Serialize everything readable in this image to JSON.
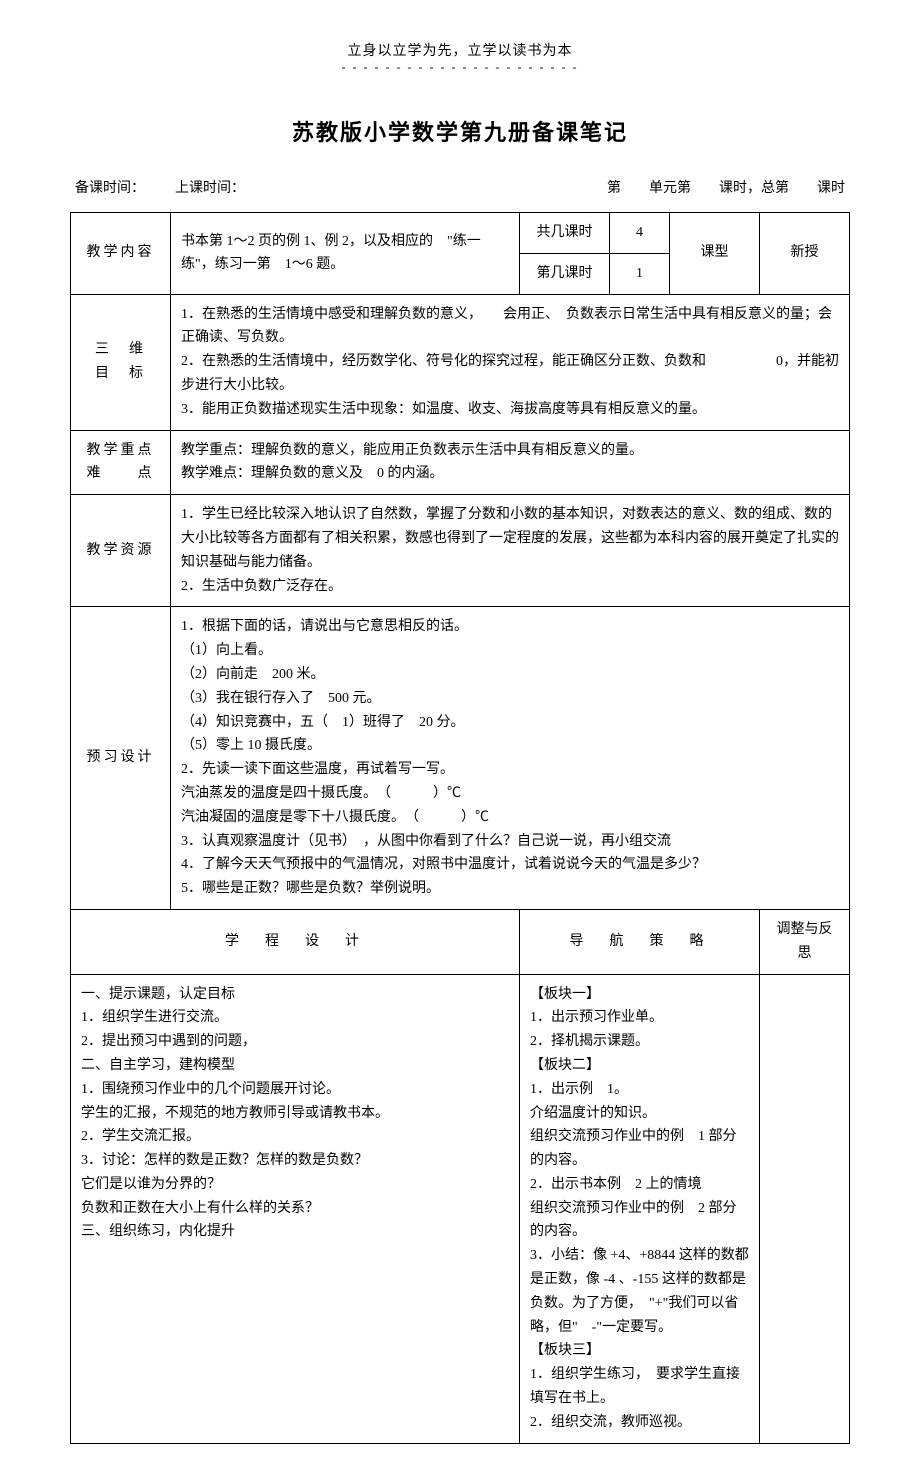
{
  "motto": {
    "text": "立身以立学为先，立学以读书为本",
    "dashes": "- - - - - - - - - - - - - - - - - - - - - -"
  },
  "title": "苏教版小学数学第九册备课笔记",
  "timing": {
    "prep_time_label": "备课时间：",
    "class_time_label": "上课时间：",
    "unit_label": "第　　单元第　　课时，总第　　课时"
  },
  "content": {
    "label": "教学内容",
    "text": "书本第 1～2 页的例 1、例 2，以及相应的　\"练一练\"，练习一第　1～6 题。",
    "total_sessions_label": "共几课时",
    "total_sessions_value": "4",
    "session_num_label": "第几课时",
    "session_num_value": "1",
    "class_type_label": "课型",
    "class_type_value": "新授"
  },
  "objectives": {
    "label1": "三　维",
    "label2": "目　标",
    "text": "1．在熟悉的生活情境中感受和理解负数的意义，　　会用正、　负数表示日常生活中具有相反意义的量；会正确读、写负数。\n2．在熟悉的生活情境中，经历数学化、符号化的探究过程，能正确区分正数、负数和　　　　　0，并能初步进行大小比较。\n3．能用正负数描述现实生活中现象：如温度、收支、海拔高度等具有相反意义的量。"
  },
  "key_points": {
    "label1": "教学重点",
    "label2": "难　　点",
    "text": "教学重点：理解负数的意义，能应用正负数表示生活中具有相反意义的量。\n教学难点：理解负数的意义及　0 的内涵。"
  },
  "resources": {
    "label": "教学资源",
    "text": "1．学生已经比较深入地认识了自然数，掌握了分数和小数的基本知识，对数表达的意义、数的组成、数的大小比较等各方面都有了相关积累，数感也得到了一定程度的发展，这些都为本科内容的展开奠定了扎实的知识基础与能力储备。\n2．生活中负数广泛存在。"
  },
  "preview": {
    "label": "预习设计",
    "text": "1．根据下面的话，请说出与它意思相反的话。\n（1）向上看。\n（2）向前走　200 米。\n（3）我在银行存入了　500 元。\n（4）知识竞赛中，五（　1）班得了　20 分。\n（5）零上 10 摄氏度。\n2．先读一读下面这些温度，再试着写一写。\n汽油蒸发的温度是四十摄氏度。　（　　　）℃\n汽油凝固的温度是零下十八摄氏度。　（　　　）℃\n3．认真观察温度计（见书）　，从图中你看到了什么？自己说一说，再小组交流\n4．了解今天天气预报中的气温情况，对照书中温度计，试着说说今天的气温是多少？\n5．哪些是正数？哪些是负数？举例说明。"
  },
  "bottom": {
    "col1_header": "学　程　设　计",
    "col2_header": "导　航　策　略",
    "col3_header": "调整与反思",
    "col1_text": "一、提示课题，认定目标\n1．组织学生进行交流。\n2．提出预习中遇到的问题，\n二、自主学习，建构模型\n1．围绕预习作业中的几个问题展开讨论。\n学生的汇报，不规范的地方教师引导或请教书本。\n2．学生交流汇报。\n3．讨论：怎样的数是正数？怎样的数是负数？\n它们是以谁为分界的？\n负数和正数在大小上有什么样的关系？\n三、组织练习，内化提升",
    "col2_text": "【板块一】\n1．出示预习作业单。\n2．择机揭示课题。\n【板块二】\n1．出示例　1。\n介绍温度计的知识。\n组织交流预习作业中的例　1 部分的内容。\n2．出示书本例　2 上的情境\n组织交流预习作业中的例　2 部分的内容。\n3．小结：像 +4、+8844 这样的数都是正数，像 -4 、-155 这样的数都是负数。为了方便，　\"+\"我们可以省略，但\"　-\"一定要写。\n【板块三】\n1．组织学生练习，　要求学生直接填写在书上。\n2．组织交流，教师巡视。",
    "col3_text": ""
  }
}
